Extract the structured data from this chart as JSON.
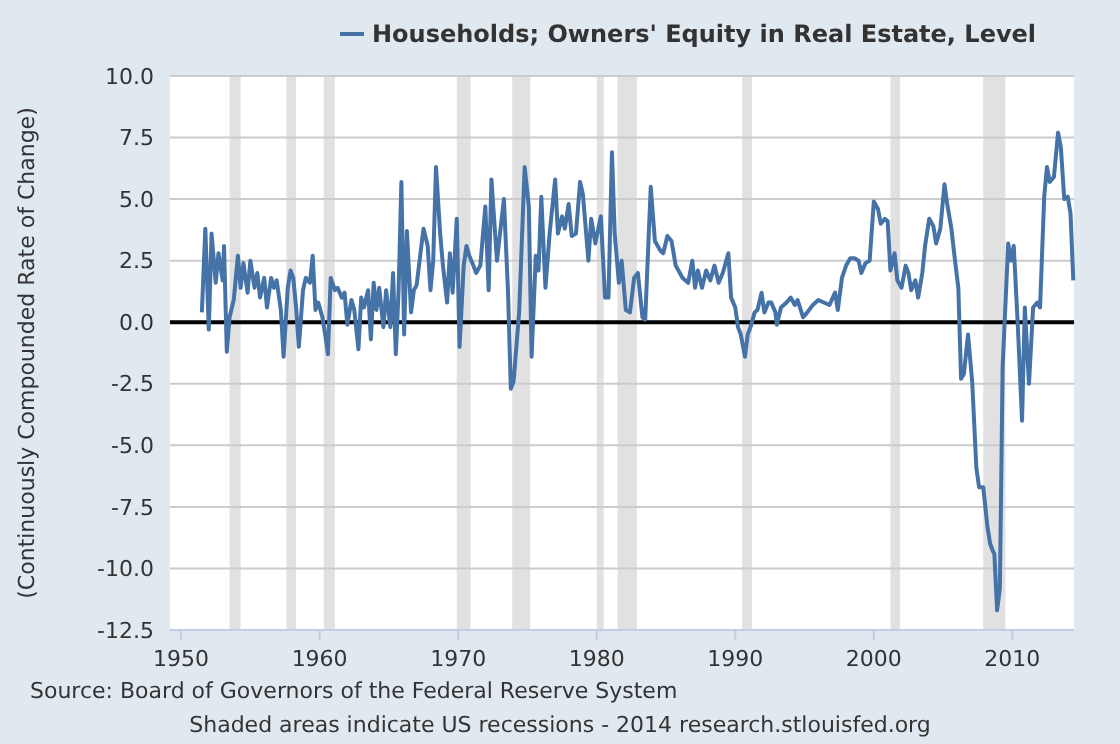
{
  "chart_data": {
    "type": "line",
    "ylabel": "(Continuously Compounded Rate of Change)",
    "annotations": [
      "Source: Board of Governors of the Federal Reserve System",
      "Shaded areas indicate US recessions - 2014 research.stlouisfed.org"
    ],
    "legend": "top",
    "grid": "y",
    "line_style": "solid",
    "marker": "none",
    "xlim": [
      1949.2,
      2014.45
    ],
    "xticks": [
      1950,
      1960,
      1970,
      1980,
      1990,
      2000,
      2010
    ],
    "ylim": [
      -12.5,
      10
    ],
    "yticks": [
      {
        "value": -12.5,
        "label": "-12.5"
      },
      {
        "value": -10,
        "label": "-10.0"
      },
      {
        "value": -7.5,
        "label": "-7.5"
      },
      {
        "value": -5,
        "label": "-5.0"
      },
      {
        "value": -2.5,
        "label": "-2.5"
      },
      {
        "value": 0,
        "label": "0.0"
      },
      {
        "value": 2.5,
        "label": "2.5"
      },
      {
        "value": 5,
        "label": "5.0"
      },
      {
        "value": 7.5,
        "label": "7.5"
      },
      {
        "value": 10,
        "label": "10.0"
      }
    ],
    "ref_lines": [
      {
        "axis": "y",
        "value": 0,
        "color": "#000000"
      }
    ],
    "bands": [
      {
        "axis": "x",
        "from": 1953.5,
        "to": 1954.3,
        "color": "#e1e1e1"
      },
      {
        "axis": "x",
        "from": 1957.6,
        "to": 1958.3,
        "color": "#e1e1e1"
      },
      {
        "axis": "x",
        "from": 1960.3,
        "to": 1961.1,
        "color": "#e1e1e1"
      },
      {
        "axis": "x",
        "from": 1969.9,
        "to": 1970.9,
        "color": "#e1e1e1"
      },
      {
        "axis": "x",
        "from": 1973.9,
        "to": 1975.2,
        "color": "#e1e1e1"
      },
      {
        "axis": "x",
        "from": 1980.0,
        "to": 1980.5,
        "color": "#e1e1e1"
      },
      {
        "axis": "x",
        "from": 1981.5,
        "to": 1982.9,
        "color": "#e1e1e1"
      },
      {
        "axis": "x",
        "from": 1990.5,
        "to": 1991.2,
        "color": "#e1e1e1"
      },
      {
        "axis": "x",
        "from": 2001.2,
        "to": 2001.9,
        "color": "#e1e1e1"
      },
      {
        "axis": "x",
        "from": 2007.9,
        "to": 2009.5,
        "color": "#e1e1e1"
      }
    ],
    "series": [
      {
        "name": "Households; Owners' Equity in Real Estate, Level",
        "color": "#4572a7",
        "x": [
          1951.5,
          1951.75,
          1952.0,
          1952.2,
          1952.5,
          1952.7,
          1953.0,
          1953.1,
          1953.3,
          1953.5,
          1953.8,
          1954.1,
          1954.3,
          1954.5,
          1954.8,
          1955.0,
          1955.3,
          1955.5,
          1955.7,
          1956.0,
          1956.2,
          1956.5,
          1956.7,
          1956.9,
          1957.2,
          1957.4,
          1957.7,
          1957.9,
          1958.1,
          1958.3,
          1958.5,
          1958.8,
          1959.0,
          1959.3,
          1959.5,
          1959.7,
          1959.9,
          1960.2,
          1960.4,
          1960.6,
          1960.8,
          1961.1,
          1961.3,
          1961.6,
          1961.8,
          1962.0,
          1962.3,
          1962.5,
          1962.8,
          1963.0,
          1963.2,
          1963.5,
          1963.7,
          1963.9,
          1964.1,
          1964.3,
          1964.6,
          1964.8,
          1965.1,
          1965.3,
          1965.5,
          1965.7,
          1965.9,
          1966.1,
          1966.3,
          1966.6,
          1966.8,
          1967.0,
          1967.3,
          1967.5,
          1967.8,
          1968.0,
          1968.2,
          1968.4,
          1968.7,
          1968.9,
          1969.2,
          1969.4,
          1969.6,
          1969.9,
          1970.1,
          1970.4,
          1970.6,
          1970.8,
          1971.1,
          1971.3,
          1971.6,
          1971.96,
          1972.2,
          1972.4,
          1972.8,
          1973.3,
          1973.6,
          1973.8,
          1974.0,
          1974.4,
          1974.8,
          1975.1,
          1975.3,
          1975.6,
          1975.8,
          1976.0,
          1976.3,
          1976.6,
          1977.0,
          1977.2,
          1977.5,
          1977.7,
          1977.97,
          1978.2,
          1978.5,
          1978.8,
          1979.0,
          1979.4,
          1979.6,
          1979.9,
          1980.3,
          1980.6,
          1980.85,
          1981.1,
          1981.3,
          1981.6,
          1981.8,
          1982.1,
          1982.4,
          1982.7,
          1982.97,
          1983.3,
          1983.5,
          1983.9,
          1984.2,
          1984.6,
          1984.8,
          1985.1,
          1985.4,
          1985.7,
          1986.0,
          1986.2,
          1986.6,
          1986.9,
          1987.1,
          1987.3,
          1987.6,
          1987.9,
          1988.2,
          1988.5,
          1988.8,
          1989.1,
          1989.5,
          1989.7,
          1990.0,
          1990.2,
          1990.4,
          1990.7,
          1990.9,
          1991.1,
          1991.4,
          1991.6,
          1991.9,
          1992.1,
          1992.4,
          1992.6,
          1992.9,
          1993.0,
          1993.3,
          1993.7,
          1994.0,
          1994.3,
          1994.5,
          1994.9,
          1995.2,
          1995.6,
          1996.0,
          1996.4,
          1996.8,
          1997.2,
          1997.4,
          1997.7,
          1998.0,
          1998.3,
          1998.6,
          1998.9,
          1999.1,
          1999.4,
          1999.7,
          2000.0,
          2000.3,
          2000.5,
          2000.8,
          2001.0,
          2001.2,
          2001.5,
          2001.7,
          2002.0,
          2002.3,
          2002.5,
          2002.7,
          2003.0,
          2003.2,
          2003.5,
          2003.7,
          2004.0,
          2004.3,
          2004.5,
          2004.8,
          2005.1,
          2005.3,
          2005.6,
          2005.8,
          2006.1,
          2006.3,
          2006.5,
          2006.8,
          2007.1,
          2007.4,
          2007.6,
          2007.9,
          2008.2,
          2008.4,
          2008.6,
          2008.7,
          2008.9,
          2009.1,
          2009.3,
          2009.7,
          2009.9,
          2010.1,
          2010.4,
          2010.7,
          2010.9,
          2011.2,
          2011.5,
          2011.8,
          2012.0,
          2012.3,
          2012.5,
          2012.7,
          2013.0,
          2013.3,
          2013.5,
          2013.75,
          2014.0,
          2014.2,
          2014.4
        ],
        "values": [
          0.4,
          3.8,
          -0.3,
          3.6,
          1.6,
          2.8,
          1.7,
          3.1,
          -1.2,
          0.2,
          0.9,
          2.7,
          1.4,
          2.4,
          1.2,
          2.5,
          1.4,
          2.0,
          1.0,
          1.8,
          0.6,
          1.8,
          1.4,
          1.7,
          0.5,
          -1.4,
          1.4,
          2.1,
          1.8,
          0.6,
          -1.0,
          1.3,
          1.8,
          1.6,
          2.7,
          0.5,
          0.8,
          0.2,
          -0.5,
          -1.3,
          1.8,
          1.3,
          1.4,
          1.0,
          1.2,
          -0.1,
          0.9,
          0.5,
          -1.1,
          1.0,
          0.6,
          1.3,
          -0.7,
          1.6,
          0.5,
          1.4,
          -0.2,
          1.3,
          -0.2,
          2.0,
          -1.3,
          1.3,
          5.7,
          -0.5,
          3.7,
          0.4,
          1.3,
          1.5,
          2.9,
          3.8,
          3.1,
          1.3,
          2.5,
          6.3,
          3.6,
          2.3,
          0.8,
          2.8,
          1.2,
          4.2,
          -1.0,
          2.3,
          3.1,
          2.7,
          2.3,
          2.0,
          2.3,
          4.7,
          1.3,
          5.8,
          2.5,
          5.0,
          1.2,
          -2.7,
          -2.4,
          0.4,
          6.3,
          4.7,
          -1.4,
          2.7,
          2.1,
          5.1,
          1.4,
          3.6,
          5.8,
          3.6,
          4.3,
          3.8,
          4.8,
          3.5,
          3.6,
          5.7,
          5.2,
          2.5,
          4.2,
          3.2,
          4.3,
          1.0,
          1.0,
          6.9,
          3.6,
          1.6,
          2.5,
          0.5,
          0.4,
          1.8,
          2.0,
          0.2,
          0.1,
          5.5,
          3.3,
          2.9,
          2.8,
          3.5,
          3.3,
          2.3,
          2.0,
          1.8,
          1.6,
          2.5,
          1.4,
          2.1,
          1.4,
          2.1,
          1.7,
          2.3,
          1.6,
          2.0,
          2.8,
          1.0,
          0.6,
          -0.2,
          -0.5,
          -1.4,
          -0.5,
          -0.2,
          0.4,
          0.5,
          1.2,
          0.4,
          0.8,
          0.8,
          0.4,
          -0.1,
          0.6,
          0.8,
          1.0,
          0.7,
          0.9,
          0.2,
          0.4,
          0.7,
          0.9,
          0.8,
          0.7,
          1.2,
          0.5,
          1.8,
          2.3,
          2.6,
          2.6,
          2.5,
          2.0,
          2.4,
          2.5,
          4.9,
          4.6,
          4.0,
          4.2,
          4.1,
          2.1,
          2.8,
          1.7,
          1.4,
          2.3,
          2.0,
          1.3,
          1.7,
          1.0,
          2.0,
          3.1,
          4.2,
          3.9,
          3.2,
          3.8,
          5.6,
          4.8,
          3.8,
          2.8,
          1.4,
          -2.3,
          -2.1,
          -0.5,
          -2.4,
          -5.9,
          -6.7,
          -6.7,
          -8.3,
          -9.0,
          -9.3,
          -9.4,
          -11.7,
          -10.8,
          -1.8,
          3.2,
          2.5,
          3.1,
          -0.2,
          -4.0,
          0.6,
          -2.5,
          0.6,
          0.8,
          0.6,
          5.1,
          6.3,
          5.7,
          5.9,
          7.7,
          7.1,
          5.0,
          5.1,
          4.4,
          1.7
        ]
      }
    ]
  }
}
